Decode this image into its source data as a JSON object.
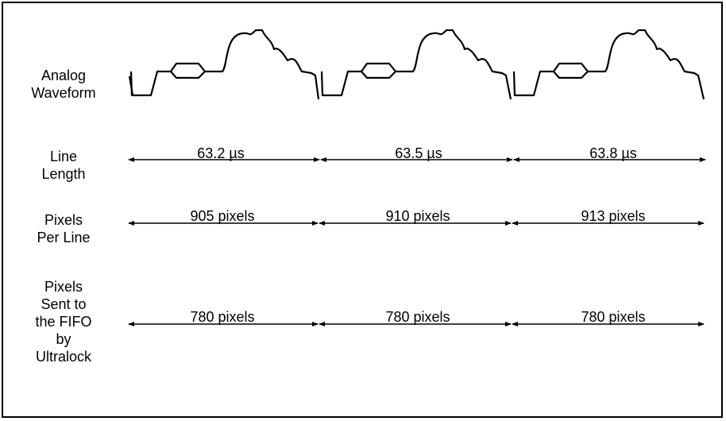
{
  "rows": {
    "waveform": {
      "label_lines": [
        "Analog",
        "Waveform"
      ]
    },
    "line_length": {
      "label_lines": [
        "Line",
        "Length"
      ],
      "values": [
        "63.2 µs",
        "63.5 µs",
        "63.8 µs"
      ]
    },
    "pixels_per_line": {
      "label_lines": [
        "Pixels",
        "Per Line"
      ],
      "values": [
        "905 pixels",
        "910 pixels",
        "913 pixels"
      ]
    },
    "pixels_sent": {
      "label_lines": [
        "Pixels",
        "Sent to",
        "the FIFO",
        "by",
        "Ultralock"
      ],
      "values": [
        "780 pixels",
        "780 pixels",
        "780 pixels"
      ]
    }
  }
}
